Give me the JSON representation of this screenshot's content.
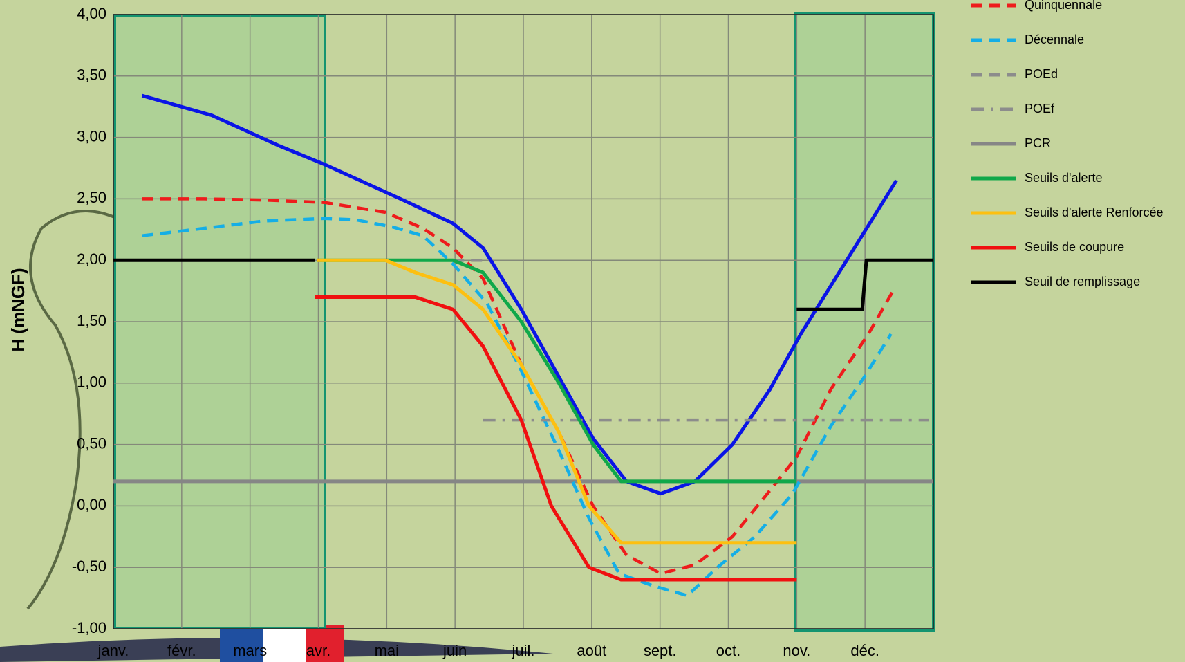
{
  "chart_data": {
    "type": "line",
    "y_label": "H (mNGF)",
    "xlim": [
      0,
      12
    ],
    "xticks": [
      {
        "value": 0,
        "label": "janv."
      },
      {
        "value": 1,
        "label": "févr."
      },
      {
        "value": 2,
        "label": "mars"
      },
      {
        "value": 3,
        "label": "avr."
      },
      {
        "value": 4,
        "label": "mai"
      },
      {
        "value": 5,
        "label": "juin"
      },
      {
        "value": 6,
        "label": "juil."
      },
      {
        "value": 7,
        "label": "août"
      },
      {
        "value": 8,
        "label": "sept."
      },
      {
        "value": 9,
        "label": "oct."
      },
      {
        "value": 10,
        "label": "nov."
      },
      {
        "value": 11,
        "label": "déc."
      }
    ],
    "ylim": [
      -1,
      4
    ],
    "yticks": [
      {
        "value": -1,
        "label": "-1,00"
      },
      {
        "value": -0.5,
        "label": "-0,50"
      },
      {
        "value": 0,
        "label": "0,00"
      },
      {
        "value": 0.5,
        "label": "0,50"
      },
      {
        "value": 1,
        "label": "1,00"
      },
      {
        "value": 1.5,
        "label": "1,50"
      },
      {
        "value": 2,
        "label": "2,00"
      },
      {
        "value": 2.5,
        "label": "2,50"
      },
      {
        "value": 3,
        "label": "3,00"
      },
      {
        "value": 3.5,
        "label": "3,50"
      },
      {
        "value": 4,
        "label": "4,00"
      }
    ],
    "grid": true,
    "series": [
      {
        "color": "#0a14e6",
        "dash": "solid",
        "x": [
          0.42,
          1.44,
          2.43,
          3.09,
          4.2,
          4.97,
          5.41,
          5.97,
          6.52,
          7.02,
          7.51,
          8.01,
          8.51,
          9.06,
          9.61,
          10.06,
          11.46
        ],
        "values": [
          3.34,
          3.18,
          2.93,
          2.78,
          2.5,
          2.3,
          2.1,
          1.6,
          1.05,
          0.55,
          0.2,
          0.1,
          0.2,
          0.5,
          0.95,
          1.4,
          2.65
        ]
      },
      {
        "name": "Quinquennale",
        "color": "#ee1c1c",
        "dash": "dashed",
        "x": [
          0.42,
          1.33,
          2.21,
          3.09,
          3.98,
          4.53,
          4.97,
          5.41,
          5.97,
          6.52,
          7.02,
          7.51,
          8.01,
          8.51,
          9.06,
          9.5,
          10.0,
          10.5,
          11.05,
          11.41
        ],
        "values": [
          2.5,
          2.5,
          2.49,
          2.47,
          2.39,
          2.26,
          2.1,
          1.85,
          1.15,
          0.6,
          0.0,
          -0.4,
          -0.55,
          -0.48,
          -0.25,
          0.05,
          0.4,
          0.95,
          1.4,
          1.75
        ]
      },
      {
        "name": "Décennale",
        "color": "#15aee6",
        "dash": "dashed",
        "x": [
          0.42,
          1.33,
          2.21,
          3.09,
          3.54,
          4.09,
          4.53,
          4.97,
          5.47,
          5.97,
          6.52,
          6.96,
          7.4,
          7.9,
          8.4,
          8.84,
          9.39,
          9.94,
          10.5,
          10.99,
          11.38
        ],
        "values": [
          2.2,
          2.26,
          2.32,
          2.34,
          2.33,
          2.27,
          2.2,
          1.97,
          1.65,
          1.1,
          0.45,
          -0.1,
          -0.55,
          -0.65,
          -0.73,
          -0.5,
          -0.25,
          0.1,
          0.65,
          1.05,
          1.4
        ]
      },
      {
        "name": "POEd",
        "color": "#8c8c8c",
        "dash": "dashed",
        "x": [
          4.97,
          5.41
        ],
        "values": [
          2.0,
          2.0
        ]
      },
      {
        "name": "POEf",
        "color": "#8c8c8c",
        "dash": "dashdot",
        "x": [
          5.41,
          11.93
        ],
        "values": [
          0.7,
          0.7
        ]
      },
      {
        "name": "PCR",
        "color": "#868686",
        "dash": "solid",
        "x": [
          0,
          12
        ],
        "values": [
          0.2,
          0.2
        ]
      },
      {
        "name": "Seuils d'alerte",
        "color": "#10a84a",
        "dash": "solid",
        "x": [
          2.98,
          4.97,
          5.41,
          5.97,
          6.52,
          7.02,
          7.43,
          10.0
        ],
        "values": [
          2.0,
          2.0,
          1.9,
          1.5,
          1.0,
          0.5,
          0.2,
          0.2
        ]
      },
      {
        "name": "Seuils d'alerte Renforcée",
        "color": "#fdc010",
        "dash": "solid",
        "x": [
          2.98,
          3.98,
          4.42,
          4.97,
          5.41,
          5.97,
          6.52,
          6.96,
          7.43,
          10.0
        ],
        "values": [
          2.0,
          2.0,
          1.9,
          1.8,
          1.6,
          1.15,
          0.6,
          0.0,
          -0.3,
          -0.3
        ]
      },
      {
        "name": "Seuils de coupure",
        "color": "#f01010",
        "dash": "solid",
        "x": [
          2.95,
          4.42,
          4.97,
          5.41,
          5.97,
          6.41,
          6.96,
          7.43,
          10.0
        ],
        "values": [
          1.7,
          1.7,
          1.6,
          1.3,
          0.7,
          0.0,
          -0.5,
          -0.6,
          -0.6
        ]
      },
      {
        "name": "Seuil de remplissage",
        "color": "#000000",
        "dash": "solid",
        "x": [
          0,
          2.95,
          null,
          10.0,
          10.96,
          11.02,
          12
        ],
        "values": [
          2.0,
          2.0,
          null,
          1.6,
          1.6,
          2.0,
          2.0
        ]
      }
    ]
  }
}
